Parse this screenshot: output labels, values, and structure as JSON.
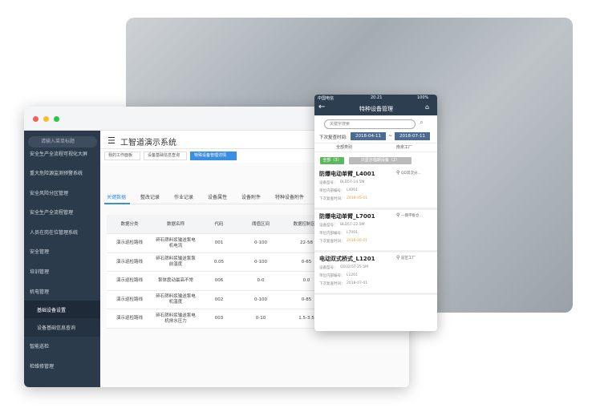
{
  "sidebar": {
    "search": "请输入菜单标题",
    "items": [
      "安全生产全流程可视化大屏",
      "重大危险源监测预警系统",
      "安全风险分区管理",
      "安全生产全流程管理",
      "人员在岗在位管理系统",
      "安全管理",
      "培训管理",
      "机电管理",
      "基础设备设置",
      "设备基础信息查询",
      "智能巡检",
      "检维修管理"
    ]
  },
  "header": {
    "title": "工智道演示系统",
    "tabs": [
      "我的工作面板",
      "设备基础信息查询",
      "特殊设备管理详情"
    ]
  },
  "subtabs": [
    "关键数据",
    "整改记录",
    "作业记录",
    "设备属性",
    "设备附件",
    "特种设备附件"
  ],
  "table": {
    "headers": [
      "数据分类",
      "数据名称",
      "代码",
      "阈值区间",
      "数据控制区间"
    ],
    "rows": [
      [
        "演示巡检路线",
        "碎石筛料浆输送泵电机电流",
        "001",
        "0-100",
        "22-58"
      ],
      [
        "演示巡检路线",
        "碎石筛料浆输送泵泵前温度",
        "0.05",
        "0-100",
        "0-65"
      ],
      [
        "演示巡检路线",
        "泵体震动最高不常",
        "006",
        "0-0",
        "0.0"
      ],
      [
        "演示巡检路线",
        "碎石筛料浆输送泵电机温度",
        "002",
        "0-100",
        "0-85"
      ],
      [
        "演示巡检路线",
        "碎石筛料浆输送泵电机排水压力",
        "003",
        "0-10",
        "1.5-3.5"
      ]
    ]
  },
  "phone": {
    "carrier": "中国电信",
    "time": "20:21",
    "battery": "100%",
    "title": "特种设备管理",
    "search": "关键字搜索",
    "date_label": "下次复查时间:",
    "date_from": "2018-04-11",
    "date_sep": "~",
    "date_to": "2018-07-11",
    "filters": [
      "全部类别",
      "南京工厂"
    ],
    "buttons": [
      "全部（3）",
      "只显示临期设备（2）"
    ],
    "cards": [
      {
        "name": "防爆电动单臂_L4001",
        "location": "QD其次分...",
        "fields": [
          {
            "label": "设备型号：",
            "value": "BLD57-14.5M"
          },
          {
            "label": "单位内部编号：",
            "value": "L4001"
          },
          {
            "label": "下次复查时间：",
            "value": "2018-05-01"
          }
        ]
      },
      {
        "name": "防爆电动单臂_L7001",
        "location": "一期平板仓...",
        "fields": [
          {
            "label": "设备型号：",
            "value": "BLD57-22.5M"
          },
          {
            "label": "单位内部编号：",
            "value": "L7001"
          },
          {
            "label": "下次复查时间：",
            "value": "2018-05-01"
          }
        ]
      },
      {
        "name": "电动双式桥式_L1201",
        "location": "前区工厂",
        "fields": [
          {
            "label": "设备型号：",
            "value": "QD32/5T-25.5M"
          },
          {
            "label": "单位内部编号：",
            "value": "L1201"
          },
          {
            "label": "下次复查时间：",
            "value": "2018-07-01"
          }
        ]
      }
    ]
  }
}
